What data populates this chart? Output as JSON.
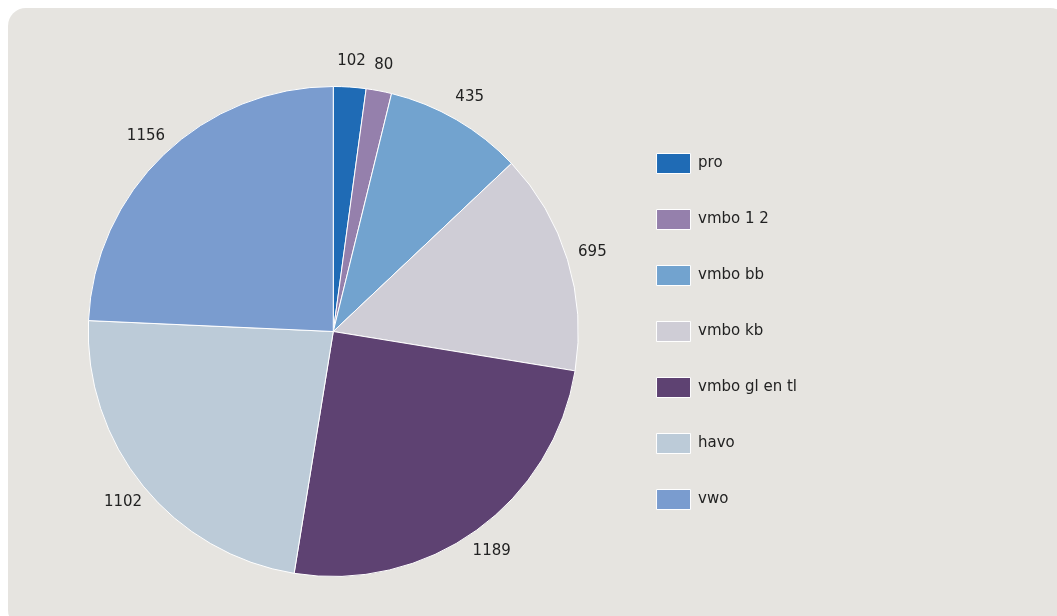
{
  "chart_data": {
    "type": "pie",
    "categories": [
      "pro",
      "vmbo 1 2",
      "vmbo bb",
      "vmbo kb",
      "vmbo gl en tl",
      "havo",
      "vwo"
    ],
    "values": [
      102,
      80,
      435,
      695,
      1189,
      1102,
      1156
    ],
    "colors": [
      "#1f6bb5",
      "#9580ac",
      "#72a3cf",
      "#cfcdd6",
      "#5e4272",
      "#bccbd8",
      "#7a9ccf"
    ],
    "legend": "right",
    "data_labels": true
  }
}
